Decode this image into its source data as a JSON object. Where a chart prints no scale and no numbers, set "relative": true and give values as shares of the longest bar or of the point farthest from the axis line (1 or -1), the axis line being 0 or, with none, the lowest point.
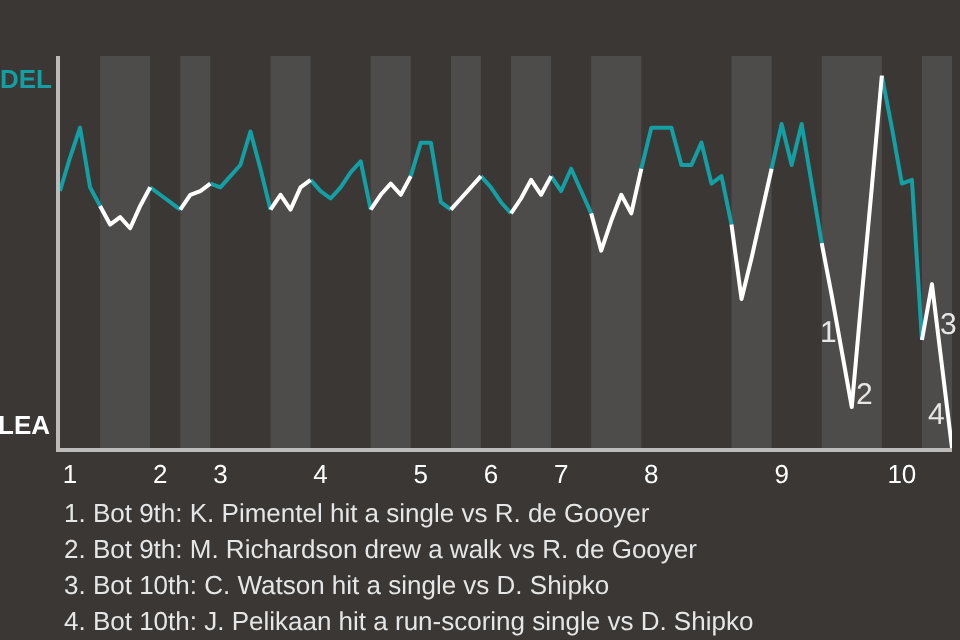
{
  "chart_data": {
    "type": "line",
    "relative": true,
    "categories": [
      null,
      "1",
      null,
      null,
      null,
      null,
      null,
      null,
      null,
      null,
      "2",
      null,
      null,
      null,
      null,
      null,
      "3",
      null,
      null,
      null,
      null,
      null,
      null,
      null,
      null,
      null,
      "4",
      null,
      null,
      null,
      null,
      null,
      null,
      null,
      null,
      null,
      "5",
      null,
      null,
      null,
      null,
      null,
      null,
      "6",
      null,
      null,
      null,
      null,
      null,
      null,
      "7",
      null,
      null,
      null,
      null,
      null,
      null,
      null,
      null,
      "8",
      null,
      null,
      null,
      null,
      null,
      null,
      null,
      null,
      null,
      null,
      null,
      null,
      "9",
      null,
      null,
      null,
      null,
      null,
      null,
      null,
      null,
      null,
      null,
      null,
      "10",
      null,
      null,
      null,
      null,
      null
    ],
    "marker": "none",
    "line_style": "solid",
    "series": [
      {
        "color": "#139fa3",
        "values": [
          0.69,
          0.78,
          0.86,
          0.7,
          0.65,
          null,
          null,
          null,
          null,
          0.7,
          0.68,
          0.66,
          0.64,
          null,
          null,
          0.71,
          0.7,
          0.73,
          0.76,
          0.85,
          0.75,
          0.64,
          null,
          null,
          null,
          0.72,
          0.69,
          0.67,
          0.7,
          0.74,
          0.77,
          0.64,
          null,
          null,
          null,
          0.73,
          0.82,
          0.82,
          0.66,
          0.64,
          null,
          null,
          0.73,
          0.7,
          0.66,
          0.63,
          null,
          null,
          null,
          0.73,
          0.69,
          0.75,
          0.69,
          0.63,
          null,
          null,
          null,
          null,
          0.75,
          0.86,
          0.86,
          0.86,
          0.76,
          0.76,
          0.82,
          0.71,
          0.73,
          0.6,
          null,
          null,
          null,
          0.75,
          0.87,
          0.76,
          0.87,
          0.71,
          0.55,
          null,
          null,
          null,
          null,
          null,
          1,
          0.86,
          0.71,
          0.72,
          0.29,
          null,
          null,
          null
        ]
      },
      {
        "color": "#ffffff",
        "values": [
          null,
          null,
          null,
          null,
          0.65,
          0.6,
          0.62,
          0.59,
          0.65,
          0.7,
          null,
          null,
          0.64,
          0.68,
          0.69,
          0.71,
          null,
          null,
          null,
          null,
          null,
          0.64,
          0.68,
          0.64,
          0.7,
          0.72,
          null,
          null,
          null,
          null,
          null,
          0.64,
          0.68,
          0.71,
          0.68,
          0.73,
          null,
          null,
          null,
          0.64,
          0.67,
          0.7,
          0.73,
          null,
          null,
          0.63,
          0.67,
          0.72,
          0.68,
          0.73,
          null,
          null,
          null,
          0.63,
          0.53,
          0.61,
          0.68,
          0.63,
          0.75,
          null,
          null,
          null,
          null,
          null,
          null,
          null,
          null,
          0.6,
          0.4,
          0.51,
          0.63,
          0.75,
          null,
          null,
          null,
          null,
          0.55,
          0.41,
          0.26,
          0.11,
          0.41,
          0.7,
          1,
          null,
          null,
          null,
          0.29,
          0.44,
          0.22,
          0
        ]
      }
    ],
    "annotations": [
      "DEL",
      "LEA",
      {
        "text": "1",
        "y": 0.31
      },
      {
        "text": "2",
        "y": 0.14
      },
      {
        "text": "3",
        "y": 0.33
      },
      {
        "text": "4",
        "y": 0.09
      },
      "1. Bot 9th: K. Pimentel hit a single vs R. de Gooyer",
      "2. Bot 9th: M. Richardson drew a walk vs R. de Gooyer",
      "3. Bot 10th: C. Watson hit a single vs D. Shipko",
      "4. Bot 10th: J. Pelikaan hit a run-scoring single vs D. Shipko"
    ]
  }
}
